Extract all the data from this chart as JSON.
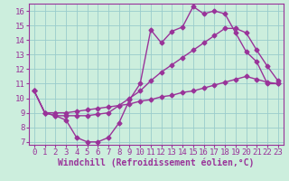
{
  "xlabel": "Windchill (Refroidissement éolien,°C)",
  "bg_color": "#cceedd",
  "line_color": "#993399",
  "grid_color": "#99cccc",
  "xlim": [
    -0.5,
    23.5
  ],
  "ylim": [
    6.8,
    16.5
  ],
  "xticks": [
    0,
    1,
    2,
    3,
    4,
    5,
    6,
    7,
    8,
    9,
    10,
    11,
    12,
    13,
    14,
    15,
    16,
    17,
    18,
    19,
    20,
    21,
    22,
    23
  ],
  "yticks": [
    7,
    8,
    9,
    10,
    11,
    12,
    13,
    14,
    15,
    16
  ],
  "curve1_x": [
    0,
    1,
    2,
    3,
    4,
    5,
    6,
    7,
    8,
    9,
    10,
    11,
    12,
    13,
    14,
    15,
    16,
    17,
    18,
    19,
    20,
    21,
    22,
    23
  ],
  "curve1_y": [
    10.5,
    9.0,
    8.8,
    8.5,
    7.3,
    7.0,
    7.0,
    7.3,
    8.3,
    9.9,
    11.0,
    14.7,
    13.8,
    14.6,
    14.9,
    16.3,
    15.8,
    16.0,
    15.8,
    14.5,
    13.2,
    12.5,
    11.0,
    11.0
  ],
  "curve2_x": [
    0,
    1,
    2,
    3,
    4,
    5,
    6,
    7,
    8,
    9,
    10,
    11,
    12,
    13,
    14,
    15,
    16,
    17,
    18,
    19,
    20,
    21,
    22,
    23
  ],
  "curve2_y": [
    10.5,
    9.0,
    8.8,
    8.8,
    8.8,
    8.8,
    8.9,
    9.0,
    9.5,
    10.0,
    10.5,
    11.2,
    11.8,
    12.3,
    12.8,
    13.3,
    13.8,
    14.3,
    14.8,
    14.8,
    14.5,
    13.3,
    12.2,
    11.2
  ],
  "curve3_x": [
    0,
    1,
    2,
    3,
    4,
    5,
    6,
    7,
    8,
    9,
    10,
    11,
    12,
    13,
    14,
    15,
    16,
    17,
    18,
    19,
    20,
    21,
    22,
    23
  ],
  "curve3_y": [
    10.5,
    9.0,
    9.0,
    9.0,
    9.1,
    9.2,
    9.3,
    9.4,
    9.5,
    9.6,
    9.8,
    9.9,
    10.1,
    10.2,
    10.4,
    10.5,
    10.7,
    10.9,
    11.1,
    11.3,
    11.5,
    11.3,
    11.1,
    11.0
  ],
  "marker": "D",
  "markersize": 2.5,
  "linewidth": 1.0,
  "xlabel_fontsize": 7,
  "tick_fontsize": 6.5
}
